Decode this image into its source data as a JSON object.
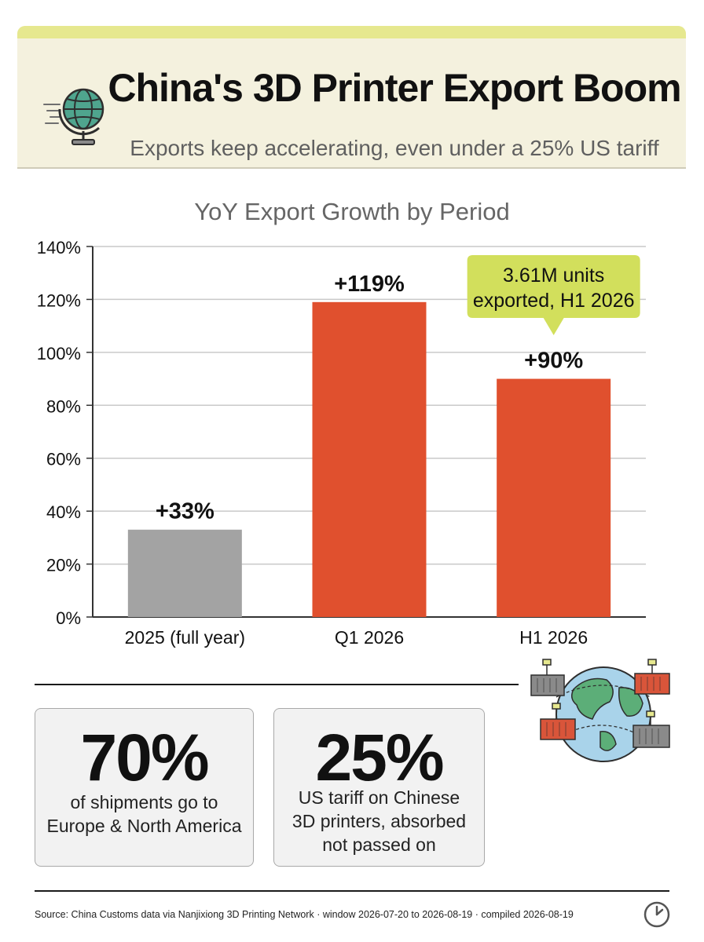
{
  "header": {
    "title": "China's 3D Printer Export Boom",
    "subtitle": "Exports keep accelerating, even under a 25% US tariff",
    "icon": "globe-icon"
  },
  "chart_data": {
    "type": "bar",
    "title": "YoY Export Growth by Period",
    "categories": [
      "2025 (full year)",
      "Q1 2026",
      "H1 2026"
    ],
    "values": [
      33,
      119,
      90
    ],
    "data_labels": [
      "+33%",
      "+119%",
      "+90%"
    ],
    "bar_colors": [
      "#a3a3a3",
      "#e0502e",
      "#e0502e"
    ],
    "y_ticks": [
      "0%",
      "20%",
      "40%",
      "60%",
      "80%",
      "100%",
      "120%",
      "140%"
    ],
    "ylim": [
      0,
      140
    ],
    "xlabel": "",
    "ylabel": "",
    "grid": true,
    "annotation": {
      "text_line1": "3.61M units",
      "text_line2": "exported, H1 2026",
      "target_category": "H1 2026",
      "color": "#d2df5c"
    }
  },
  "stats": [
    {
      "value": "70%",
      "lines": [
        "of shipments go to",
        "Europe & North America"
      ]
    },
    {
      "value": "25%",
      "lines": [
        "US tariff on Chinese",
        "3D printers, absorbed",
        "not passed on"
      ]
    }
  ],
  "footer": {
    "source": "Source: China Customs data via Nanjixiong 3D Printing Network · window 2026-07-20 to 2026-08-19 · compiled 2026-08-19",
    "icon": "clock-icon"
  },
  "colors": {
    "header_bg": "#f4f1de",
    "header_band": "#e6e88f",
    "accent_bar": "#e0502e",
    "baseline_bar": "#a3a3a3",
    "callout": "#d2df5c"
  }
}
